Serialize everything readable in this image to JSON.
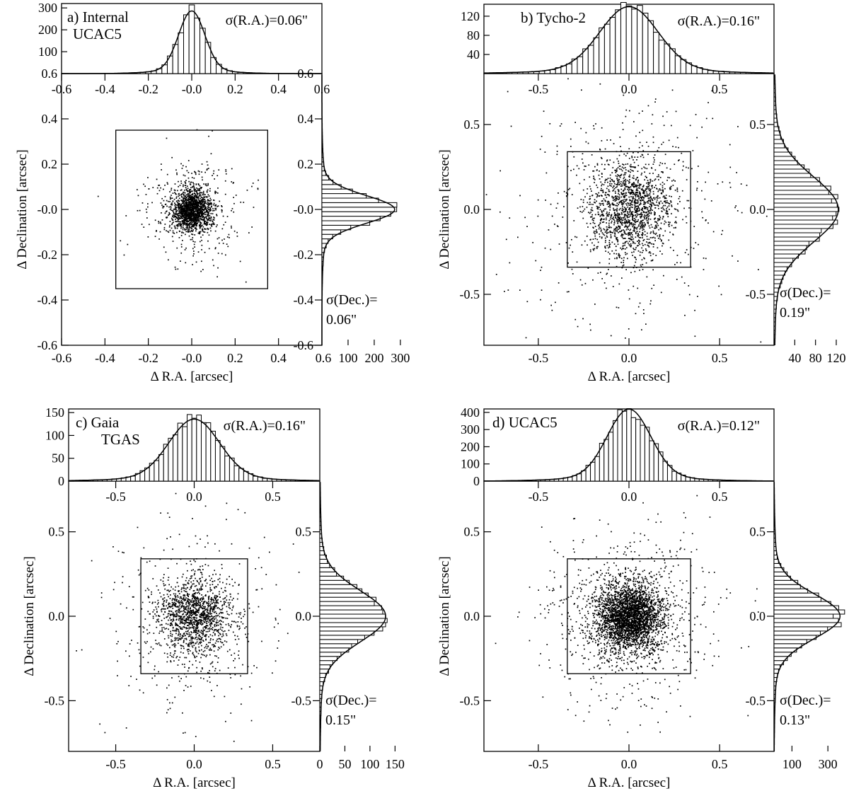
{
  "figure": {
    "xlabel": "Δ R.A. [arcsec]",
    "ylabel": "Δ Declination [arcsec]"
  },
  "chart_data": [
    {
      "id": "a",
      "type": "scatter",
      "title_lines": [
        "a) Internal",
        "UCAC5"
      ],
      "sigma_ra_label": "σ(R.A.)=0.06\"",
      "sigma_dec_label_lines": [
        "σ(Dec.)=",
        "0.06\""
      ],
      "xlabel": "Δ R.A. [arcsec]",
      "ylabel": "Δ Declination [arcsec]",
      "xlim": [
        -0.6,
        0.6
      ],
      "ylim": [
        -0.6,
        0.6
      ],
      "xticks": [
        -0.6,
        -0.4,
        -0.2,
        0.0,
        0.2,
        0.4
      ],
      "xtick_labels": [
        "-0.6",
        "-0.4",
        "-0.2",
        "-0.0",
        "0.2",
        "0.4"
      ],
      "top_xtick_labels": [
        "-0.6",
        "-0.4",
        "-0.2",
        "-0.0",
        "0.2",
        "0.4",
        "0.6"
      ],
      "top_xticks": [
        -0.6,
        -0.4,
        -0.2,
        0.0,
        0.2,
        0.4,
        0.6
      ],
      "yticks": [
        -0.6,
        -0.4,
        -0.2,
        0.0,
        0.2,
        0.4,
        0.6
      ],
      "ytick_labels": [
        "-0.6",
        "-0.4",
        "-0.2",
        "-0.0",
        "0.2",
        "0.4",
        "0.6"
      ],
      "right_ytick_labels": [
        "-0.6",
        "-0.4",
        "-0.2",
        "-0.0",
        "0.2",
        "0.4",
        "0.6"
      ],
      "box_half_width": 0.35,
      "n_points": 1800,
      "sigma_ra": 0.06,
      "sigma_dec": 0.06,
      "top_hist": {
        "ylim": [
          0,
          320
        ],
        "yticks": [
          100,
          200,
          300
        ],
        "ytick_labels": [
          "100",
          "200",
          "300"
        ],
        "bin_width": 0.025,
        "peak": 270,
        "spike": 310,
        "spike_bin": 0
      },
      "right_hist": {
        "xlim": [
          0,
          330
        ],
        "xticks": [
          100,
          200,
          300
        ],
        "xtick_labels": [
          "100",
          "200",
          "300"
        ],
        "left_label": "0.6",
        "bin_width": 0.02,
        "peak": 265,
        "spike": 290,
        "spike_bin": 1
      }
    },
    {
      "id": "b",
      "type": "scatter",
      "title_lines": [
        "b) Tycho-2"
      ],
      "sigma_ra_label": "σ(R.A.)=0.16\"",
      "sigma_dec_label_lines": [
        "σ(Dec.)=",
        "0.19\""
      ],
      "xlabel": "Δ R.A. [arcsec]",
      "ylabel": "Δ Declination [arcsec]",
      "xlim": [
        -0.8,
        0.8
      ],
      "ylim": [
        -0.8,
        0.8
      ],
      "xticks": [
        -0.5,
        0.0,
        0.5
      ],
      "xtick_labels": [
        "-0.5",
        "0.0",
        "0.5"
      ],
      "top_xticks": [
        -0.5,
        0.0,
        0.5
      ],
      "top_xtick_labels": [
        "-0.5",
        "0.0",
        "0.5"
      ],
      "yticks": [
        -0.5,
        0.0,
        0.5
      ],
      "ytick_labels": [
        "-0.5",
        "0.0",
        "0.5"
      ],
      "right_ytick_labels": [
        "-0.5",
        "0.0",
        "0.5"
      ],
      "box_half_width": 0.34,
      "n_points": 1900,
      "sigma_ra": 0.16,
      "sigma_dec": 0.19,
      "top_hist": {
        "ylim": [
          0,
          145
        ],
        "yticks": [
          40,
          80,
          120
        ],
        "ytick_labels": [
          "40",
          "80",
          "120"
        ],
        "bin_width": 0.03,
        "peak": 132,
        "spike": 136,
        "spike_bin": 0
      },
      "right_hist": {
        "xlim": [
          0,
          135
        ],
        "xticks": [
          40,
          80,
          120
        ],
        "xtick_labels": [
          "40",
          "80",
          "120"
        ],
        "left_label": "",
        "bin_width": 0.025,
        "peak": 118,
        "spike": 125,
        "spike_bin": -1
      }
    },
    {
      "id": "c",
      "type": "scatter",
      "title_lines": [
        "c) Gaia",
        "TGAS"
      ],
      "sigma_ra_label": "σ(R.A.)=0.16\"",
      "sigma_dec_label_lines": [
        "σ(Dec.)=",
        "0.15\""
      ],
      "xlabel": "Δ R.A. [arcsec]",
      "ylabel": "Δ Declination [arcsec]",
      "xlim": [
        -0.8,
        0.8
      ],
      "ylim": [
        -0.8,
        0.8
      ],
      "xticks": [
        -0.5,
        0.0,
        0.5
      ],
      "xtick_labels": [
        "-0.5",
        "0.0",
        "0.5"
      ],
      "top_xticks": [
        -0.5,
        0.0,
        0.5
      ],
      "top_xtick_labels": [
        "-0.5",
        "0.0",
        "0.5"
      ],
      "yticks": [
        -0.5,
        0.0,
        0.5
      ],
      "ytick_labels": [
        "-0.5",
        "0.0",
        "0.5"
      ],
      "right_ytick_labels": [
        "-0.5",
        "0.0",
        "0.5"
      ],
      "box_half_width": 0.34,
      "n_points": 1700,
      "sigma_ra": 0.16,
      "sigma_dec": 0.15,
      "top_hist": {
        "ylim": [
          0,
          158
        ],
        "yticks": [
          0,
          50,
          100,
          150
        ],
        "ytick_labels": [
          "0",
          "50",
          "100",
          "150"
        ],
        "bin_width": 0.03,
        "peak": 128,
        "spike": 150,
        "spike_bin": 0
      },
      "right_hist": {
        "xlim": [
          0,
          165
        ],
        "xticks": [
          0,
          50,
          100,
          150
        ],
        "xtick_labels": [
          "0",
          "50",
          "100",
          "150"
        ],
        "left_label": "",
        "bin_width": 0.025,
        "peak": 125,
        "spike": 135,
        "spike_bin": 0
      }
    },
    {
      "id": "d",
      "type": "scatter",
      "title_lines": [
        "d) UCAC5"
      ],
      "sigma_ra_label": "σ(R.A.)=0.12\"",
      "sigma_dec_label_lines": [
        "σ(Dec.)=",
        "0.13\""
      ],
      "xlabel": "Δ R.A. [arcsec]",
      "ylabel": "Δ Declination [arcsec]",
      "xlim": [
        -0.8,
        0.8
      ],
      "ylim": [
        -0.8,
        0.8
      ],
      "xticks": [
        -0.5,
        0.0,
        0.5
      ],
      "xtick_labels": [
        "-0.5",
        "0.0",
        "0.5"
      ],
      "top_xticks": [
        -0.5,
        0.0,
        0.5
      ],
      "top_xtick_labels": [
        "-0.5",
        "0.0",
        "0.5"
      ],
      "yticks": [
        -0.5,
        0.0,
        0.5
      ],
      "ytick_labels": [
        "-0.5",
        "0.0",
        "0.5"
      ],
      "right_ytick_labels": [
        "-0.5",
        "0.0",
        "0.5"
      ],
      "box_half_width": 0.34,
      "n_points": 3600,
      "sigma_ra": 0.12,
      "sigma_dec": 0.13,
      "top_hist": {
        "ylim": [
          0,
          420
        ],
        "yticks": [
          0,
          100,
          200,
          300,
          400
        ],
        "ytick_labels": [
          "0",
          "100",
          "200",
          "300",
          "400"
        ],
        "bin_width": 0.025,
        "peak": 395,
        "spike": 405,
        "spike_bin": 0
      },
      "right_hist": {
        "xlim": [
          0,
          390
        ],
        "xticks": [
          100,
          300
        ],
        "xtick_labels": [
          "100",
          "300"
        ],
        "left_label": "",
        "bin_width": 0.025,
        "peak": 350,
        "spike": 360,
        "spike_bin": 0
      }
    }
  ]
}
